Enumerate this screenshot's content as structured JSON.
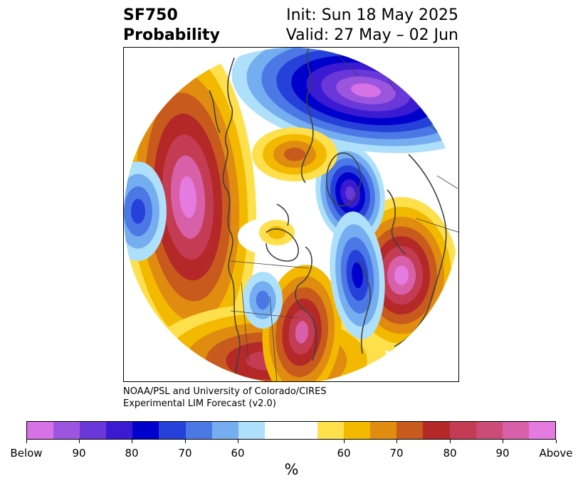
{
  "title": {
    "left_line1": "SF750",
    "left_line2": "Probability",
    "right_line1": "Init: Sun 18 May 2025",
    "right_line2": "Valid: 27 May – 02 Jun"
  },
  "credit": {
    "line1": "NOAA/PSL and University of Colorado/CIRES",
    "line2": "Experimental LIM Forecast (v2.0)"
  },
  "colorbar": {
    "colors": [
      "#d771e6",
      "#9b55df",
      "#6a37d8",
      "#3b1bd2",
      "#0000cc",
      "#2541d9",
      "#4c78e6",
      "#74aef0",
      "#aee0fb",
      "#ffffff",
      "#ffffff",
      "#fee04d",
      "#f3b800",
      "#e08c10",
      "#c85a1e",
      "#b42828",
      "#c33c54",
      "#cc4c78",
      "#d760a8",
      "#e57ae0"
    ],
    "tick_labels": [
      "Below",
      "90",
      "80",
      "70",
      "60",
      "60",
      "70",
      "80",
      "90",
      "Above"
    ],
    "unit": "%"
  },
  "map": {
    "projection": "north-polar-stereographic",
    "palette": {
      "pink": "#e57ae0",
      "magenta": "#d760a8",
      "rose": "#c33c54",
      "red": "#b42828",
      "burnt": "#c85a1e",
      "orange": "#e08c10",
      "gold": "#f3b800",
      "yellow": "#fee04d",
      "paleblue": "#aee0fb",
      "lightblue": "#74aef0",
      "midblue": "#4c78e6",
      "blue": "#2541d9",
      "navy": "#0000cc",
      "indigo": "#3b1bd2",
      "violet": "#6a37d8",
      "purple": "#9b55df",
      "lilac": "#d771e6"
    }
  }
}
